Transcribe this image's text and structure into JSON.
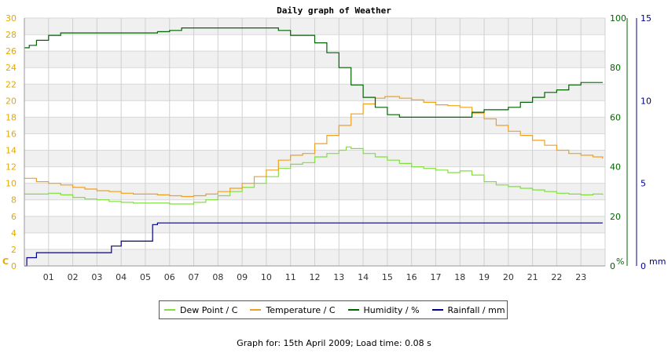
{
  "footer_text": "Graph for: 15th April 2009; Load time: 0.08 s",
  "chart_data": {
    "type": "line",
    "title": "Daily graph of Weather",
    "x_ticks": [
      "01",
      "02",
      "03",
      "04",
      "05",
      "06",
      "07",
      "08",
      "09",
      "10",
      "11",
      "12",
      "13",
      "14",
      "15",
      "16",
      "17",
      "18",
      "19",
      "20",
      "21",
      "22",
      "23"
    ],
    "xlim": [
      0,
      24
    ],
    "axes": {
      "temp": {
        "unit_label": "C",
        "ylim": [
          0,
          30
        ],
        "ticks": [
          0,
          2,
          4,
          6,
          8,
          10,
          12,
          14,
          16,
          18,
          20,
          22,
          24,
          26,
          28,
          30
        ],
        "color": "#e6a800"
      },
      "humidity": {
        "unit_label": "%",
        "ylim": [
          0,
          100
        ],
        "ticks": [
          0,
          20,
          40,
          60,
          80,
          100
        ],
        "color": "#006400"
      },
      "rain": {
        "unit_label": "mm",
        "ylim": [
          0,
          15
        ],
        "ticks": [
          0,
          5,
          10,
          15
        ],
        "color": "#00008b"
      }
    },
    "grid": true,
    "legend_position": "bottom-center",
    "series": [
      {
        "name": "Dew Point / C",
        "axis": "temp",
        "color": "#7fe03a",
        "x": [
          0,
          0.5,
          1,
          1.5,
          2,
          2.5,
          3,
          3.5,
          4,
          4.5,
          5,
          5.5,
          6,
          6.5,
          7,
          7.5,
          8,
          8.5,
          9,
          9.5,
          10,
          10.5,
          11,
          11.5,
          12,
          12.5,
          13,
          13.3,
          13.5,
          14,
          14.5,
          15,
          15.5,
          16,
          16.5,
          17,
          17.5,
          18,
          18.5,
          19,
          19.5,
          20,
          20.5,
          21,
          21.5,
          22,
          22.5,
          23,
          23.5,
          23.9
        ],
        "y": [
          8.7,
          8.7,
          8.8,
          8.6,
          8.3,
          8.1,
          8.0,
          7.8,
          7.7,
          7.6,
          7.6,
          7.6,
          7.5,
          7.5,
          7.7,
          8.0,
          8.5,
          9.0,
          9.5,
          10.0,
          10.8,
          11.8,
          12.3,
          12.5,
          13.2,
          13.6,
          14.0,
          14.4,
          14.2,
          13.6,
          13.2,
          12.8,
          12.4,
          12.0,
          11.8,
          11.6,
          11.3,
          11.5,
          11.0,
          10.2,
          9.8,
          9.6,
          9.4,
          9.2,
          9.0,
          8.8,
          8.7,
          8.6,
          8.7,
          8.6
        ]
      },
      {
        "name": "Temperature / C",
        "axis": "temp",
        "color": "#f0a020",
        "x": [
          0,
          0.5,
          1,
          1.5,
          2,
          2.5,
          3,
          3.5,
          4,
          4.5,
          5,
          5.5,
          6,
          6.5,
          7,
          7.5,
          8,
          8.5,
          9,
          9.5,
          10,
          10.5,
          11,
          11.5,
          12,
          12.5,
          13,
          13.5,
          14,
          14.5,
          14.9,
          15.5,
          16,
          16.5,
          17,
          17.5,
          18,
          18.5,
          19,
          19.5,
          20,
          20.5,
          21,
          21.5,
          22,
          22.5,
          23,
          23.5,
          23.9
        ],
        "y": [
          10.6,
          10.2,
          10.0,
          9.8,
          9.5,
          9.3,
          9.1,
          9.0,
          8.8,
          8.7,
          8.7,
          8.6,
          8.5,
          8.4,
          8.5,
          8.7,
          9.0,
          9.4,
          10.0,
          10.8,
          11.6,
          12.8,
          13.4,
          13.6,
          14.8,
          15.8,
          17.0,
          18.4,
          19.6,
          20.3,
          20.5,
          20.3,
          20.1,
          19.8,
          19.5,
          19.4,
          19.2,
          18.5,
          17.8,
          17.0,
          16.3,
          15.8,
          15.2,
          14.6,
          14.0,
          13.6,
          13.4,
          13.2,
          13.0
        ]
      },
      {
        "name": "Humidity / %",
        "axis": "humidity",
        "color": "#006400",
        "x": [
          0,
          0.2,
          0.5,
          1,
          1.5,
          2,
          3,
          4,
          5,
          5.5,
          6,
          6.5,
          7,
          8,
          9,
          10,
          10.5,
          11,
          11.5,
          12,
          12.5,
          13,
          13.5,
          14,
          14.5,
          15,
          15.5,
          16,
          16.5,
          17,
          17.5,
          18,
          18.5,
          19,
          19.5,
          20,
          20.5,
          21,
          21.5,
          22,
          22.5,
          23,
          23.3,
          23.9
        ],
        "y": [
          88,
          89,
          91,
          93,
          94,
          94,
          94,
          94,
          94,
          94.5,
          95,
          96,
          96,
          96,
          96,
          96,
          95,
          93,
          93,
          90,
          86,
          80,
          73,
          68,
          64,
          61,
          60,
          60,
          60,
          60,
          60,
          60,
          62,
          63,
          63,
          64,
          66,
          68,
          70,
          71,
          73,
          74,
          74,
          74
        ]
      },
      {
        "name": "Rainfall / mm",
        "axis": "rain",
        "color": "#00008b",
        "x": [
          0,
          0.1,
          0.3,
          0.5,
          1,
          2,
          3.3,
          3.6,
          4,
          5,
          5.3,
          5.5,
          6,
          7,
          8,
          9,
          10,
          11,
          12,
          13,
          14,
          15,
          16,
          17,
          18,
          19,
          20,
          21,
          22,
          23,
          23.9
        ],
        "y": [
          0,
          0.5,
          0.5,
          0.8,
          0.8,
          0.8,
          0.8,
          1.2,
          1.5,
          1.5,
          2.5,
          2.6,
          2.6,
          2.6,
          2.6,
          2.6,
          2.6,
          2.6,
          2.6,
          2.6,
          2.6,
          2.6,
          2.6,
          2.6,
          2.6,
          2.6,
          2.6,
          2.6,
          2.6,
          2.6,
          2.6
        ]
      }
    ]
  }
}
